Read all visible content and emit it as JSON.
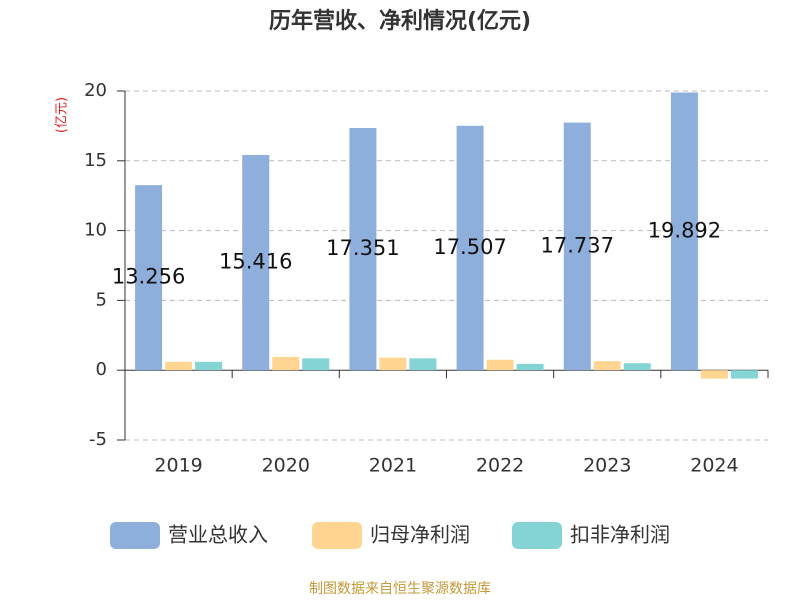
{
  "chart_data": {
    "type": "bar",
    "title": "历年营收、净利情况(亿元)",
    "y_label": "(亿元)",
    "categories": [
      "2019",
      "2020",
      "2021",
      "2022",
      "2023",
      "2024"
    ],
    "series": [
      {
        "name": "营业总收入",
        "color": "#8eaedb",
        "values": [
          13.256,
          15.416,
          17.351,
          17.507,
          17.737,
          19.892
        ],
        "show_labels": true
      },
      {
        "name": "归母净利润",
        "color": "#ffd591",
        "values": [
          0.6,
          0.95,
          0.9,
          0.75,
          0.65,
          -0.6
        ]
      },
      {
        "name": "扣非净利润",
        "color": "#84d4d6",
        "values": [
          0.6,
          0.85,
          0.85,
          0.45,
          0.5,
          -0.6
        ]
      }
    ],
    "ylim": [
      -5,
      20
    ],
    "yticks": [
      -5,
      0,
      5,
      10,
      15,
      20
    ],
    "grid": true,
    "legend": "bottom",
    "source": "制图数据来自恒生聚源数据库"
  }
}
